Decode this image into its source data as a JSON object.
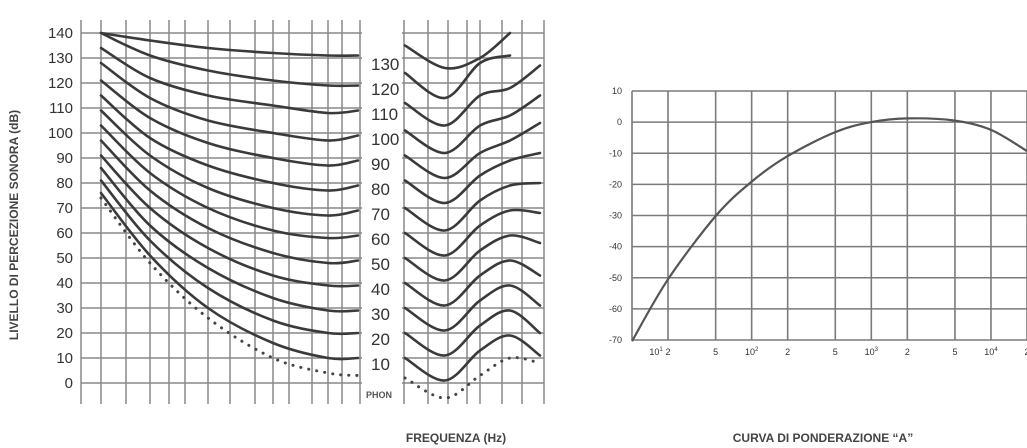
{
  "chart_data": [
    {
      "type": "line",
      "title": "",
      "xlabel": "FREQUENZA (Hz)",
      "ylabel": "LIVELLO DI PERCEZIONE SONORA (dB)",
      "ylim": [
        0,
        140
      ],
      "y_ticks": [
        "140",
        "130",
        "120",
        "110",
        "100",
        "90",
        "80",
        "70",
        "60",
        "50",
        "40",
        "30",
        "20",
        "10",
        "0"
      ],
      "phon_labels": [
        "130",
        "120",
        "110",
        "100",
        "90",
        "80",
        "70",
        "60",
        "50",
        "40",
        "30",
        "20",
        "10"
      ],
      "phon_unit": "PHON",
      "series": [
        {
          "phon": 130,
          "left_levels": [
            140,
            137,
            134,
            132,
            131,
            131
          ],
          "right_levels": [
            135,
            126,
            130,
            140
          ]
        },
        {
          "phon": 120,
          "left_levels": [
            140,
            131,
            125,
            121,
            119,
            119
          ],
          "right_levels": [
            124,
            114,
            128,
            131
          ]
        },
        {
          "phon": 110,
          "left_levels": [
            134,
            122,
            115,
            111,
            108,
            109
          ],
          "right_levels": [
            112,
            103,
            115,
            118,
            127
          ]
        },
        {
          "phon": 100,
          "left_levels": [
            128,
            114,
            105,
            100,
            97,
            99
          ],
          "right_levels": [
            101,
            92,
            103,
            107,
            115
          ]
        },
        {
          "phon": 90,
          "left_levels": [
            121,
            106,
            96,
            90,
            87,
            89
          ],
          "right_levels": [
            91,
            82,
            92,
            97,
            104
          ]
        },
        {
          "phon": 80,
          "left_levels": [
            115,
            98,
            87,
            80,
            77,
            79
          ],
          "right_levels": [
            81,
            72,
            83,
            89,
            92
          ]
        },
        {
          "phon": 70,
          "left_levels": [
            109,
            91,
            78,
            70,
            67,
            69
          ],
          "right_levels": [
            70,
            61,
            73,
            79,
            80
          ]
        },
        {
          "phon": 60,
          "left_levels": [
            103,
            84,
            70,
            61,
            58,
            59
          ],
          "right_levels": [
            60,
            51,
            63,
            69,
            68
          ]
        },
        {
          "phon": 50,
          "left_levels": [
            97,
            77,
            62,
            52,
            48,
            49
          ],
          "right_levels": [
            50,
            41,
            53,
            59,
            56
          ]
        },
        {
          "phon": 40,
          "left_levels": [
            91,
            70,
            54,
            43,
            39,
            39
          ],
          "right_levels": [
            40,
            31,
            43,
            49,
            43
          ]
        },
        {
          "phon": 30,
          "left_levels": [
            86,
            63,
            46,
            34,
            29,
            29
          ],
          "right_levels": [
            30,
            21,
            33,
            39,
            31
          ]
        },
        {
          "phon": 20,
          "left_levels": [
            81,
            57,
            38,
            25,
            20,
            20
          ],
          "right_levels": [
            20,
            11,
            23,
            29,
            20
          ]
        },
        {
          "phon": 10,
          "left_levels": [
            76,
            51,
            30,
            16,
            10,
            10
          ],
          "right_levels": [
            10,
            1,
            13,
            19,
            11
          ]
        },
        {
          "phon": 0,
          "threshold": true,
          "left_levels": [
            74,
            48,
            26,
            10,
            4,
            3
          ],
          "right_levels": [
            2,
            -6,
            3,
            10,
            8
          ]
        }
      ]
    },
    {
      "type": "line",
      "title": "CURVA DI PONDERAZIONE “A”",
      "ylim": [
        -70,
        10
      ],
      "y_ticks": [
        "10",
        "0",
        "-10",
        "-20",
        "-30",
        "-40",
        "-50",
        "-60",
        "-70"
      ],
      "x_ticks": [
        {
          "base": "10",
          "sup": "1"
        },
        {
          "base": "2",
          "sup": ""
        },
        {
          "base": "5",
          "sup": ""
        },
        {
          "base": "10",
          "sup": "2"
        },
        {
          "base": "2",
          "sup": ""
        },
        {
          "base": "5",
          "sup": ""
        },
        {
          "base": "10",
          "sup": "3"
        },
        {
          "base": "2",
          "sup": ""
        },
        {
          "base": "5",
          "sup": ""
        },
        {
          "base": "10",
          "sup": "4"
        },
        {
          "base": "2",
          "sup": ""
        }
      ],
      "x": [
        10,
        20,
        50,
        100,
        200,
        500,
        1000,
        2000,
        5000,
        10000,
        20000
      ],
      "values": [
        -70.4,
        -50.5,
        -30.2,
        -19.1,
        -10.9,
        -3.2,
        0,
        1.2,
        0.5,
        -2.5,
        -9.3
      ]
    }
  ]
}
